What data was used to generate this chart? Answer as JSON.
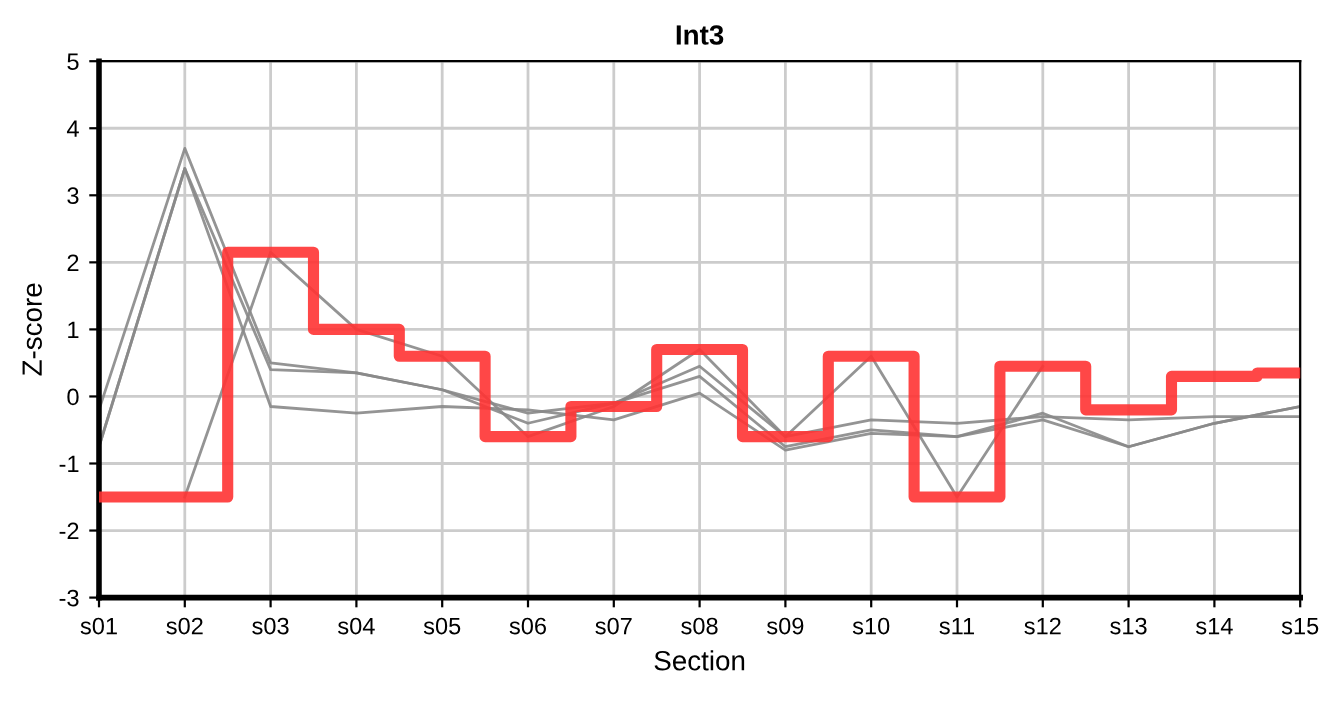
{
  "chart_data": {
    "type": "line",
    "title": "Int3",
    "xlabel": "Section",
    "ylabel": "Z-score",
    "categories": [
      "s01",
      "s02",
      "s03",
      "s04",
      "s05",
      "s06",
      "s07",
      "s08",
      "s09",
      "s10",
      "s11",
      "s12",
      "s13",
      "s14",
      "s15"
    ],
    "series": [
      {
        "color": "#888888",
        "values": [
          -0.2,
          3.7,
          0.5,
          0.35,
          0.1,
          -0.25,
          -0.1,
          0.45,
          -0.6,
          -0.35,
          -0.4,
          -0.3,
          -0.35,
          -0.3,
          -0.3
        ]
      },
      {
        "color": "#888888",
        "values": [
          -0.75,
          3.4,
          0.4,
          0.35,
          0.1,
          -0.4,
          -0.1,
          0.3,
          -0.75,
          -0.5,
          -0.6,
          -0.25,
          -0.75,
          -0.4,
          -0.15
        ]
      },
      {
        "color": "#888888",
        "values": [
          -0.75,
          3.4,
          -0.15,
          -0.25,
          -0.15,
          -0.2,
          -0.35,
          0.05,
          -0.8,
          -0.55,
          -0.6,
          -0.35,
          -0.75,
          -0.4,
          -0.15
        ]
      },
      {
        "color": "#888888",
        "values": [
          null,
          -1.5,
          2.15,
          1.0,
          0.6,
          -0.6,
          -0.15,
          0.7,
          -0.6,
          0.6,
          -1.5,
          0.45,
          null,
          null,
          null
        ]
      },
      {
        "type": "step",
        "color": "#ff3333",
        "values": [
          -1.5,
          -1.5,
          2.15,
          1.0,
          0.6,
          -0.6,
          -0.15,
          0.7,
          -0.6,
          0.6,
          -1.5,
          0.45,
          -0.2,
          0.3,
          0.35
        ]
      }
    ],
    "ylim": [
      -3,
      5
    ],
    "yticks": [
      -3,
      -2,
      -1,
      0,
      1,
      2,
      3,
      4,
      5
    ],
    "grid": true,
    "legend": false
  }
}
